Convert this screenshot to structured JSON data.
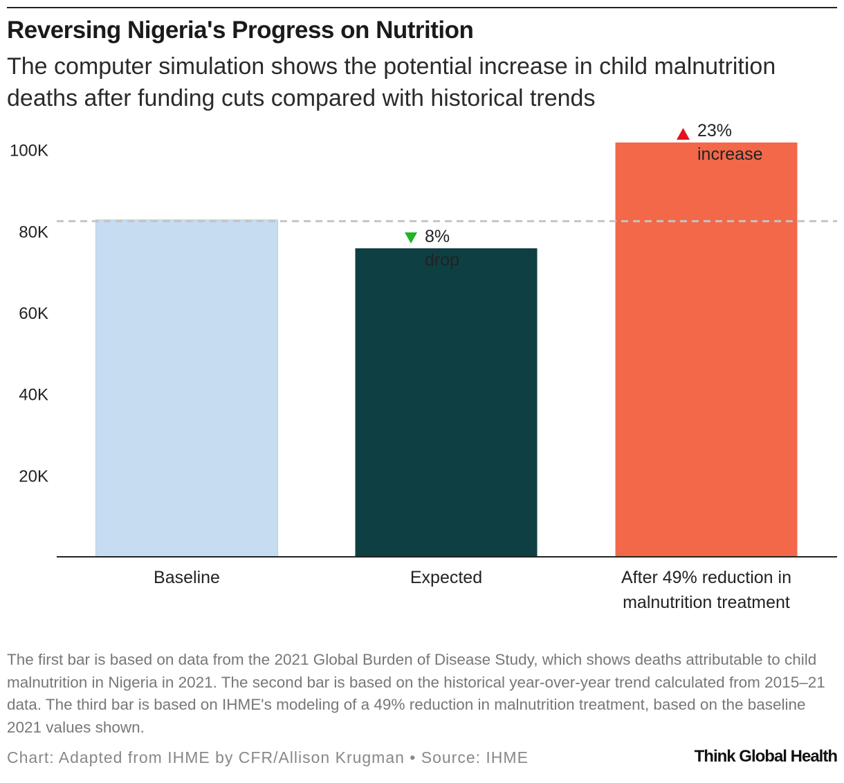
{
  "title": "Reversing Nigeria's Progress on Nutrition",
  "subtitle": "The computer simulation shows the potential increase in child malnutrition deaths after funding cuts compared with historical trends",
  "chart_data": {
    "type": "bar",
    "categories": [
      "Baseline",
      "Expected",
      "After 49% reduction in malnutrition treatment"
    ],
    "category_lines": [
      [
        "Baseline"
      ],
      [
        "Expected"
      ],
      [
        "After 49% reduction in",
        "malnutrition treatment"
      ]
    ],
    "values": [
      82800,
      75800,
      101800
    ],
    "colors": [
      "#c6dcf1",
      "#0e3f43",
      "#f26849"
    ],
    "ylim": [
      0,
      105000
    ],
    "yticks": [
      20000,
      40000,
      60000,
      80000,
      100000
    ],
    "ytick_labels": [
      "20K",
      "40K",
      "60K",
      "80K",
      "100K"
    ],
    "reference_line": 82800,
    "annotations": [
      {
        "bar": 1,
        "lines": [
          "8%",
          "drop"
        ],
        "arrow": "down",
        "arrow_color": "#1fb524",
        "text_color": "#222222"
      },
      {
        "bar": 2,
        "lines": [
          "23%",
          "increase"
        ],
        "arrow": "up",
        "arrow_color": "#e3121b",
        "text_color": "#222222"
      }
    ],
    "xlabel": "",
    "ylabel": ""
  },
  "notes": "The first bar is based on data from the 2021 Global Burden of Disease Study, which shows deaths attributable to child malnutrition in Nigeria in 2021. The second bar is based on the historical year-over-year trend calculated from 2015–21 data. The third bar is based on IHME's modeling of a 49% reduction in malnutrition treatment, based on the baseline 2021 values shown.",
  "credit": "Chart: Adapted from IHME by CFR/Allison Krugman • Source: IHME",
  "logo_text": "Think Global Health"
}
